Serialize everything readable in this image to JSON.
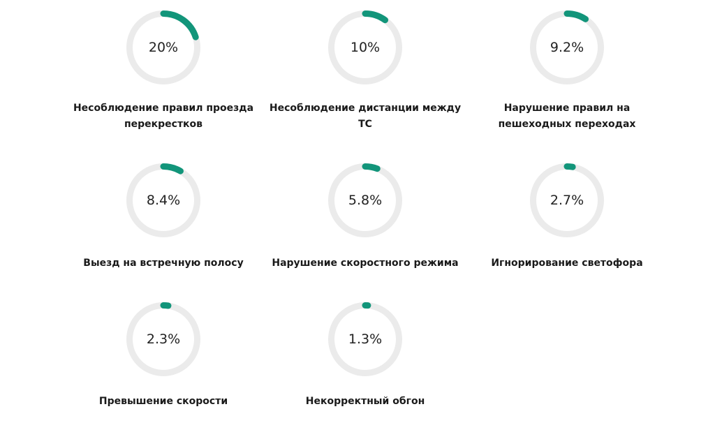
{
  "chart_data": {
    "type": "donut",
    "unit": "%",
    "colors": {
      "track": "#ebebeb",
      "fill": "#12957a",
      "text": "#222222"
    },
    "items": [
      {
        "label": "Несоблюдение правил проезда перекрестков",
        "value": 20,
        "display": "20%"
      },
      {
        "label": "Несоблюдение дистанции между ТС",
        "value": 10,
        "display": "10%"
      },
      {
        "label": "Нарушение правил на пешеходных переходах",
        "value": 9.2,
        "display": "9.2%"
      },
      {
        "label": "Выезд на встречную полосу",
        "value": 8.4,
        "display": "8.4%"
      },
      {
        "label": "Нарушение скоростного режима",
        "value": 5.8,
        "display": "5.8%"
      },
      {
        "label": "Игнорирование светофора",
        "value": 2.7,
        "display": "2.7%"
      },
      {
        "label": "Превышение скорости",
        "value": 2.3,
        "display": "2.3%"
      },
      {
        "label": "Некорректный обгон",
        "value": 1.3,
        "display": "1.3%"
      }
    ]
  }
}
